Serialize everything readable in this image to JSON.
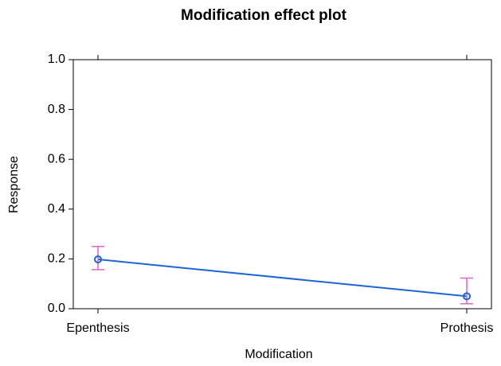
{
  "chart_data": {
    "type": "line",
    "title": "Modification effect plot",
    "x_label": "Modification",
    "y_label": "Response",
    "categories": [
      "Epenthesis",
      "Prothesis"
    ],
    "series": [
      {
        "color": "#1a66d9",
        "error_color": "#e060d0",
        "values": [
          0.198,
          0.05
        ],
        "lower": [
          0.157,
          0.02
        ],
        "upper": [
          0.25,
          0.123
        ]
      }
    ],
    "ylim": [
      0,
      1
    ],
    "yticks": [
      {
        "value": 0,
        "label": "0.0"
      },
      0.2,
      0.4,
      0.6,
      0.8,
      {
        "value": 1,
        "label": "1.0"
      }
    ]
  }
}
